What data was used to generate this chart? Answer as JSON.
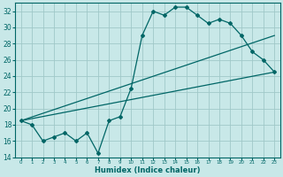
{
  "title": "",
  "xlabel": "Humidex (Indice chaleur)",
  "ylabel": "",
  "background_color": "#c8e8e8",
  "grid_color": "#a0c8c8",
  "line_color": "#006666",
  "xlim": [
    -0.5,
    23.5
  ],
  "ylim": [
    14,
    33
  ],
  "xticks": [
    0,
    1,
    2,
    3,
    4,
    5,
    6,
    7,
    8,
    9,
    10,
    11,
    12,
    13,
    14,
    15,
    16,
    17,
    18,
    19,
    20,
    21,
    22,
    23
  ],
  "yticks": [
    14,
    16,
    18,
    20,
    22,
    24,
    26,
    28,
    30,
    32
  ],
  "line1_x": [
    0,
    1,
    2,
    3,
    4,
    5,
    6,
    7,
    8,
    9,
    10,
    11,
    12,
    13,
    14,
    15,
    16,
    17,
    18,
    19,
    20,
    21,
    22,
    23
  ],
  "line1_y": [
    18.5,
    18.0,
    16.0,
    16.5,
    17.0,
    16.0,
    17.0,
    14.5,
    18.5,
    19.0,
    22.5,
    29.0,
    32.0,
    31.5,
    32.5,
    32.5,
    31.5,
    30.5,
    31.0,
    30.5,
    29.0,
    27.0,
    26.0,
    24.5
  ],
  "line2_x": [
    0,
    23
  ],
  "line2_y": [
    18.5,
    29.0
  ],
  "line3_x": [
    0,
    23
  ],
  "line3_y": [
    18.5,
    24.5
  ]
}
